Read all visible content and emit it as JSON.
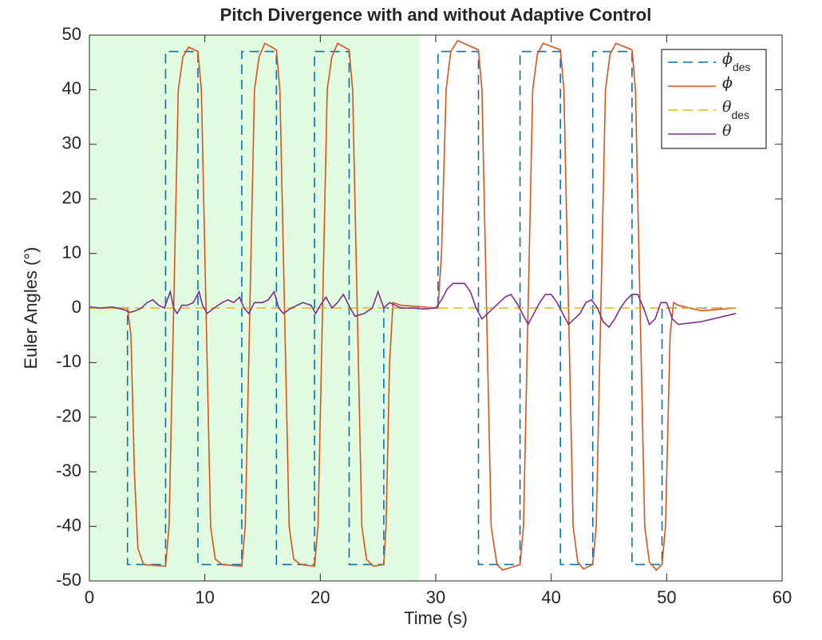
{
  "chart_data": {
    "type": "line",
    "title": "Pitch Divergence with and without Adaptive Control",
    "x_label": "Time (s)",
    "y_label": "Euler Angles (°)",
    "xlim": [
      0,
      60
    ],
    "xticks": [
      0,
      10,
      20,
      30,
      40,
      50,
      60
    ],
    "ylim": [
      -50,
      50
    ],
    "yticks": [
      -50,
      -40,
      -30,
      -20,
      -10,
      0,
      10,
      20,
      30,
      40,
      50
    ],
    "shaded_region": {
      "x": [
        0,
        28.6
      ],
      "color": "#e1fbe1"
    },
    "legend": "upper right",
    "series": [
      {
        "name": "ϕ",
        "subscript": "des",
        "color": "#0072bd",
        "line_style": "dashed",
        "x": [
          0,
          3.3,
          3.3,
          6.6,
          6.6,
          9.4,
          9.4,
          13.2,
          13.2,
          16.2,
          16.2,
          19.5,
          19.5,
          22.5,
          22.5,
          25.5,
          25.5,
          30.2,
          30.2,
          33.7,
          33.7,
          37.3,
          37.3,
          40.8,
          40.8,
          43.6,
          43.6,
          47.0,
          47.0,
          49.6,
          49.6,
          56
        ],
        "values": [
          0,
          0,
          -47,
          -47,
          47,
          47,
          -47,
          -47,
          47,
          47,
          -47,
          -47,
          47,
          47,
          -47,
          -47,
          0,
          0,
          47,
          47,
          -47,
          -47,
          47,
          47,
          -47,
          -47,
          47,
          47,
          -47,
          -47,
          0,
          0
        ]
      },
      {
        "name": "ϕ",
        "color": "#d95319",
        "line_style": "solid",
        "x": [
          0,
          3.3,
          3.6,
          3.9,
          4.2,
          4.7,
          6.6,
          6.9,
          7.3,
          7.7,
          8.1,
          8.6,
          9.4,
          9.7,
          10.1,
          10.5,
          10.9,
          11.5,
          13.2,
          13.5,
          13.9,
          14.3,
          14.7,
          15.2,
          16.2,
          16.5,
          16.9,
          17.3,
          17.7,
          18.3,
          19.5,
          19.8,
          20.2,
          20.6,
          21.0,
          21.5,
          22.5,
          22.8,
          23.2,
          23.6,
          24.0,
          24.6,
          25.5,
          25.7,
          26.0,
          26.3,
          27.0,
          30.2,
          30.5,
          30.9,
          31.3,
          31.9,
          33.7,
          34.0,
          34.4,
          34.8,
          35.3,
          35.8,
          37.3,
          37.6,
          38.0,
          38.4,
          38.8,
          39.3,
          40.8,
          41.1,
          41.5,
          41.9,
          42.3,
          42.8,
          43.6,
          43.9,
          44.3,
          44.7,
          45.1,
          45.6,
          47.0,
          47.3,
          47.7,
          48.1,
          48.5,
          49.1,
          49.6,
          49.9,
          50.3,
          50.6,
          51.0,
          53.0,
          56.0
        ],
        "values": [
          0,
          0,
          -5,
          -30,
          -44,
          -47,
          -47.3,
          -40,
          0,
          40,
          46,
          47.8,
          47,
          40,
          0,
          -40,
          -46,
          -47,
          -47.3,
          -40,
          0,
          40,
          46,
          48.5,
          47.3,
          40,
          0,
          -40,
          -46,
          -47,
          -47.3,
          -40,
          0,
          40,
          46,
          48.5,
          47.3,
          40,
          0,
          -40,
          -46,
          -47.3,
          -47,
          -40,
          -10,
          1,
          0.5,
          0,
          10,
          40,
          47,
          49,
          47.3,
          40,
          0,
          -40,
          -47,
          -48,
          -47,
          -40,
          0,
          40,
          46.5,
          48.5,
          47.3,
          40,
          0,
          -40,
          -46.5,
          -47.8,
          -47,
          -40,
          0,
          40,
          46.5,
          48.5,
          47.3,
          40,
          0,
          -40,
          -46.5,
          -48,
          -47,
          -40,
          -5,
          1,
          0.5,
          -0.5,
          0
        ]
      },
      {
        "name": "θ",
        "subscript": "des",
        "color": "#edb120",
        "line_style": "dashed",
        "x": [
          0,
          56
        ],
        "values": [
          0,
          0
        ]
      },
      {
        "name": "θ",
        "color": "#7e2f8e",
        "line_style": "solid",
        "x": [
          0,
          1,
          2,
          3,
          3.5,
          4,
          4.5,
          5,
          5.5,
          6,
          6.5,
          7,
          7.3,
          7.6,
          8,
          8.5,
          9,
          9.5,
          9.8,
          10.2,
          10.8,
          11.5,
          12,
          12.5,
          13,
          13.4,
          13.8,
          14.3,
          15,
          15.5,
          16,
          16.4,
          16.8,
          17.5,
          18.5,
          19.2,
          19.6,
          20,
          20.5,
          21,
          21.5,
          22,
          22.6,
          23,
          23.8,
          24.5,
          25,
          25.5,
          26,
          27,
          28,
          29,
          30,
          30.5,
          31,
          31.5,
          32,
          32.5,
          33,
          33.5,
          34,
          34.5,
          35,
          36,
          36.5,
          37,
          37.5,
          38,
          38.5,
          39,
          39.5,
          40,
          40.5,
          41,
          41.5,
          42,
          42.5,
          43,
          43.5,
          44,
          44.5,
          45,
          45.5,
          46,
          46.5,
          47,
          47.5,
          48,
          48.5,
          49,
          49.5,
          50,
          50.5,
          51,
          53,
          56
        ],
        "values": [
          0.2,
          0,
          0.2,
          -0.3,
          -0.8,
          -0.5,
          0,
          1,
          1.5,
          0.5,
          0,
          3,
          0,
          -1,
          0.5,
          0.5,
          1,
          3,
          0.5,
          -1,
          0,
          1,
          1.5,
          1,
          2,
          0,
          -1,
          1,
          1,
          1.5,
          3,
          0,
          -1,
          0,
          1,
          0.5,
          -1,
          0.5,
          2,
          0,
          1,
          2.5,
          0,
          -1.5,
          -1,
          0,
          3,
          0,
          1,
          0,
          0,
          -0.2,
          0,
          1.5,
          3.5,
          4.5,
          4.5,
          4.5,
          3,
          0,
          -2,
          -1,
          0,
          2,
          2.5,
          1,
          -1,
          -3,
          -1,
          1,
          2.5,
          2.5,
          1,
          -1,
          -3,
          -2,
          -1,
          1,
          1.5,
          0,
          -2.5,
          -3.5,
          -2,
          0,
          1.5,
          2.5,
          2.5,
          0,
          -3,
          -2,
          1,
          1,
          -2,
          -3,
          -2.5,
          -1
        ]
      }
    ]
  }
}
